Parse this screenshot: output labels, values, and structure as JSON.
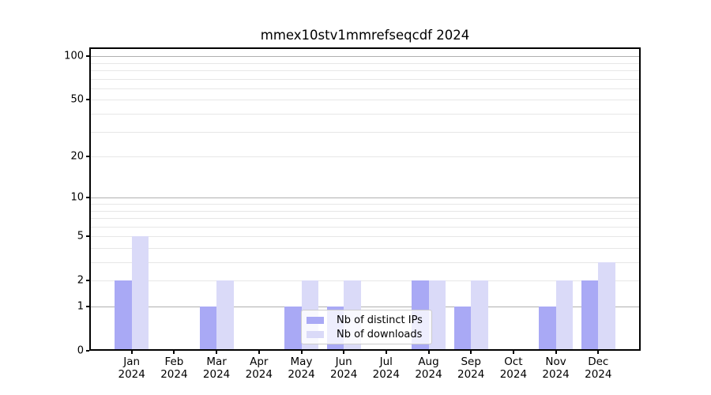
{
  "chart_data": {
    "type": "bar",
    "title": "mmex10stv1mmrefseqcdf 2024",
    "x_year": "2024",
    "categories": [
      "Jan",
      "Feb",
      "Mar",
      "Apr",
      "May",
      "Jun",
      "Jul",
      "Aug",
      "Sep",
      "Oct",
      "Nov",
      "Dec"
    ],
    "series": [
      {
        "name": "Nb of distinct IPs",
        "color": "#a9a9f5",
        "values": [
          2,
          0,
          1,
          0,
          1,
          1,
          0,
          2,
          1,
          0,
          1,
          2
        ]
      },
      {
        "name": "Nb of downloads",
        "color": "#dadaf8",
        "values": [
          5,
          0,
          2,
          0,
          2,
          2,
          0,
          2,
          2,
          0,
          2,
          3
        ]
      }
    ],
    "y_axis": {
      "scale": "log(1+y)",
      "ylim": [
        0,
        115
      ],
      "tick_values": [
        0,
        1,
        2,
        5,
        10,
        20,
        50,
        100
      ],
      "tick_labels": [
        "0",
        "1",
        "2",
        "5",
        "10",
        "20",
        "50",
        "100"
      ],
      "major_grid_values": [
        1,
        10,
        100
      ],
      "minor_grid_values": [
        2,
        3,
        4,
        5,
        6,
        7,
        8,
        9,
        20,
        30,
        40,
        50,
        60,
        70,
        80,
        90
      ]
    },
    "legend": {
      "position": "lower center"
    },
    "colors": {
      "background": "#ffffff",
      "frame": "#000000",
      "grid_major": "#b0b0b0",
      "grid_minor": "#e7e7e7",
      "legend_border": "#cccccc",
      "legend_background": "rgba(255,255,255,0.8)",
      "text": "#000000"
    }
  }
}
